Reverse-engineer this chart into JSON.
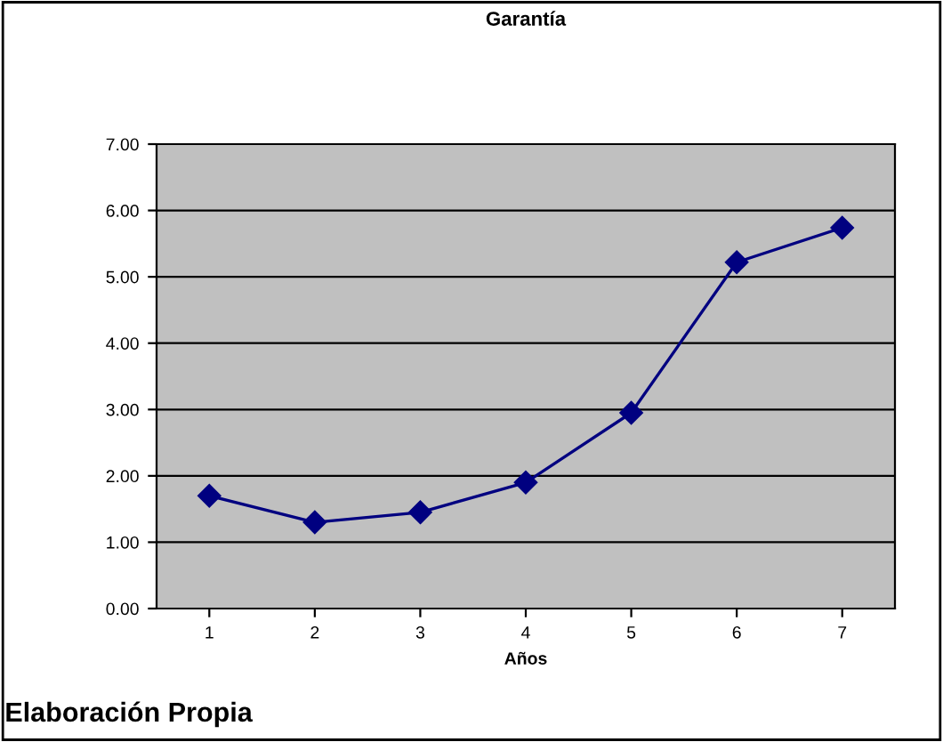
{
  "chart_data": {
    "type": "line",
    "title": "Garantía",
    "xlabel": "Años",
    "categories": [
      "1",
      "2",
      "3",
      "4",
      "5",
      "6",
      "7"
    ],
    "series": [
      {
        "color": "#000080",
        "values": [
          1.7,
          1.3,
          1.45,
          1.9,
          2.95,
          5.22,
          5.74
        ]
      }
    ],
    "ylim": [
      0,
      7
    ],
    "yticks": [
      {
        "value": 0,
        "label": "0.00"
      },
      {
        "value": 1,
        "label": "1.00"
      },
      {
        "value": 2,
        "label": "2.00"
      },
      {
        "value": 3,
        "label": "3.00"
      },
      {
        "value": 4,
        "label": "4.00"
      },
      {
        "value": 5,
        "label": "5.00"
      },
      {
        "value": 6,
        "label": "6.00"
      },
      {
        "value": 7,
        "label": "7.00"
      }
    ],
    "grid": "y",
    "marker": "diamond",
    "line_style": "solid",
    "annotations": [
      "Elaboración Propia"
    ]
  }
}
